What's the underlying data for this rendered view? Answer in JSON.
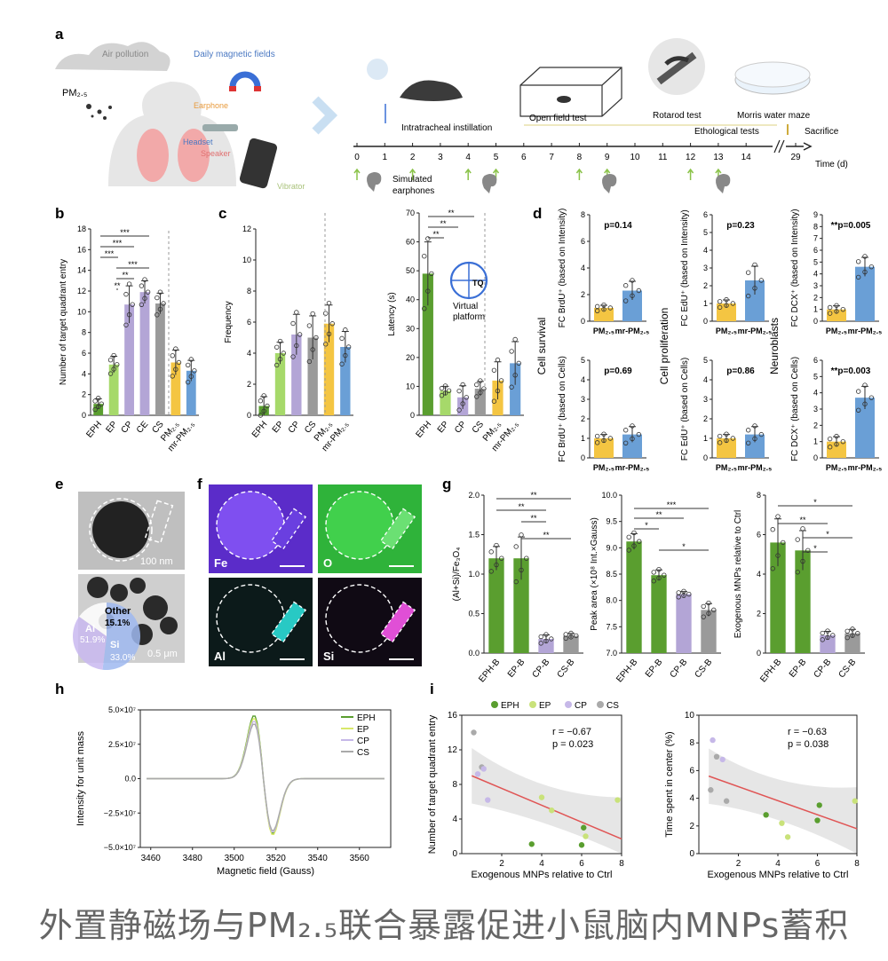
{
  "colors": {
    "EPH": "#5a9e2f",
    "EP": "#a6d96a",
    "CP": "#b3a5d6",
    "CS": "#9a9a9a",
    "PM": "#f4c542",
    "mrPM": "#6a9fd6",
    "line": "#e05555",
    "band": "#dcdcdc"
  },
  "caption": "外置静磁场与PM₂.₅联合暴露促进小鼠脑内MNPs蓄积",
  "panel_a": {
    "label": "a",
    "air_pollution": "Air pollution",
    "daily_fields": "Daily magnetic fields",
    "pm": "PM₂.₅",
    "earphone": "Earphone",
    "headset": "Headset",
    "speaker": "Speaker",
    "vibrator": "Vibrator",
    "instillation": "Intratracheal instillation",
    "open_field": "Open field test",
    "rotarod": "Rotarod test",
    "morris": "Morris water maze",
    "etho": "Ethological tests",
    "sacrifice": "Sacrifice",
    "simulated": "Simulated",
    "earphones": "earphones",
    "time_label": "Time (d)",
    "ticks": [
      "0",
      "1",
      "2",
      "3",
      "4",
      "5",
      "6",
      "7",
      "8",
      "9",
      "10",
      "11",
      "12",
      "13",
      "14",
      "29"
    ]
  },
  "panel_b": {
    "label": "b",
    "ylabel": "Number of target quadrant entry",
    "yticks": [
      "0",
      "2",
      "4",
      "6",
      "8",
      "10",
      "12",
      "14",
      "16",
      "18"
    ],
    "sig": [
      "***",
      "***",
      "***",
      "***",
      "**",
      "**"
    ]
  },
  "panel_c": {
    "label": "c",
    "ylabel_left": "Frequency",
    "ylabel_right": "Latency (s)",
    "yticks_left": [
      "0",
      "2",
      "4",
      "6",
      "8",
      "10",
      "12"
    ],
    "yticks_right": [
      "0",
      "10",
      "20",
      "30",
      "40",
      "50",
      "60",
      "70"
    ],
    "virtual1": "Virtual",
    "virtual2": "platform",
    "tq": "TQ",
    "sig": [
      "**",
      "**",
      "**"
    ]
  },
  "panel_d": {
    "label": "d",
    "row_titles": [
      "Cell survival",
      "Cell proliferation",
      "Neuroblasts"
    ],
    "top_ylabels": [
      "FC BrdU⁺ (based on Intensity)",
      "FC EdU⁺ (based on Intensity)",
      "FC DCX⁺ (based on Intensity)"
    ],
    "bot_ylabels": [
      "FC BrdU⁺ (based on Cells)",
      "FC EdU⁺ (based on Cells)",
      "FC DCX⁺ (based on Cells)"
    ],
    "pvals_top": [
      "p=0.14",
      "p=0.23",
      "**p=0.005"
    ],
    "pvals_bot": [
      "p=0.69",
      "p=0.86",
      "**p=0.003"
    ],
    "xcats": [
      "PM₂.₅",
      "mr-PM₂.₅"
    ]
  },
  "panel_e": {
    "label": "e",
    "scale1": "100 nm",
    "scale2": "0.5 μm",
    "other": "Other",
    "other_pct": "15.1%",
    "al": "Al",
    "al_pct": "51.9%",
    "si": "Si",
    "si_pct": "33.0%"
  },
  "panel_f": {
    "label": "f",
    "elements": [
      "Fe",
      "O",
      "Al",
      "Si"
    ]
  },
  "panel_g": {
    "label": "g",
    "ylabel1": "(Al+Si)/Fe₃O₄",
    "ylabel2": "Peak area (×10⁸ Int.×Gauss)",
    "ylabel3": "Exogenous MNPs relative to Ctrl",
    "yticks1": [
      "0.0",
      "0.5",
      "1.0",
      "1.5",
      "2.0"
    ],
    "yticks2": [
      "7.0",
      "7.5",
      "8.0",
      "8.5",
      "9.0",
      "9.5",
      "10.0"
    ],
    "yticks3": [
      "0",
      "2",
      "4",
      "6",
      "8"
    ],
    "xcats": [
      "EPH-B",
      "EP-B",
      "CP-B",
      "CS-B"
    ],
    "sig1": [
      "**",
      "**",
      "**",
      "**"
    ],
    "sig2": [
      "***",
      "**",
      "*",
      "*"
    ],
    "sig3": [
      "*",
      "**",
      "*",
      "*"
    ]
  },
  "panel_h": {
    "label": "h",
    "ylabel": "Intensity for unit mass",
    "xlabel": "Magnetic field (Gauss)",
    "yticks": [
      "5.0×10⁷",
      "2.5×10⁷",
      "0.0",
      "−2.5×10⁷",
      "−5.0×10⁷"
    ],
    "xticks": [
      "3460",
      "3480",
      "3500",
      "3520",
      "3540",
      "3560"
    ],
    "legend": [
      "EPH",
      "EP",
      "CP",
      "CS"
    ]
  },
  "panel_i": {
    "label": "i",
    "legend": [
      "EPH",
      "EP",
      "CP",
      "CS"
    ],
    "ylabel1": "Number of target quadrant entry",
    "ylabel2": "Time spent in center (%)",
    "xlabel": "Exogenous MNPs relative to Ctrl",
    "r1": "r = −0.67",
    "p1": "p = 0.023",
    "r2": "r = −0.63",
    "p2": "p = 0.038",
    "yticks1": [
      "0",
      "4",
      "8",
      "12",
      "16"
    ],
    "yticks2": [
      "0",
      "2",
      "4",
      "6",
      "8",
      "10"
    ],
    "xticks": [
      "2",
      "4",
      "6",
      "8"
    ]
  },
  "chart_data": [
    {
      "type": "bar",
      "panel": "b",
      "categories": [
        "EPH",
        "EP",
        "CP",
        "CE",
        "CS",
        "PM₂.₅",
        "mr-PM₂.₅"
      ],
      "values": [
        1.1,
        4.9,
        10.7,
        11.9,
        10.8,
        5.1,
        4.3
      ],
      "errors": [
        0.5,
        0.8,
        1.8,
        1.1,
        1.0,
        1.2,
        1.0
      ],
      "ylim": [
        0,
        18
      ]
    },
    {
      "type": "bar",
      "panel": "c-frequency",
      "categories": [
        "EPH",
        "EP",
        "CP",
        "CS",
        "PM₂.₅",
        "mr-PM₂.₅"
      ],
      "values": [
        0.6,
        4.0,
        5.2,
        5.0,
        5.9,
        4.4
      ],
      "errors": [
        0.6,
        0.7,
        1.3,
        1.4,
        1.2,
        1.0
      ],
      "ylim": [
        0,
        12
      ]
    },
    {
      "type": "bar",
      "panel": "c-latency",
      "categories": [
        "EPH",
        "EP",
        "CP",
        "CS",
        "PM₂.₅",
        "mr-PM₂.₅"
      ],
      "values": [
        49,
        8.5,
        6.2,
        9.2,
        12,
        18
      ],
      "errors": [
        11,
        1.5,
        4,
        2.5,
        6.5,
        7.5
      ],
      "ylim": [
        0,
        70
      ]
    },
    {
      "type": "bar",
      "panel": "d-survival-intensity",
      "categories": [
        "PM₂.₅",
        "mr-PM₂.₅"
      ],
      "values": [
        1.0,
        2.3
      ],
      "errors": [
        0.2,
        0.7
      ],
      "ylim": [
        0,
        8
      ]
    },
    {
      "type": "bar",
      "panel": "d-proliferation-intensity",
      "categories": [
        "PM₂.₅",
        "mr-PM₂.₅"
      ],
      "values": [
        1.0,
        2.3
      ],
      "errors": [
        0.2,
        0.8
      ],
      "ylim": [
        0,
        6
      ]
    },
    {
      "type": "bar",
      "panel": "d-neuroblast-intensity",
      "categories": [
        "PM₂.₅",
        "mr-PM₂.₅"
      ],
      "values": [
        1.0,
        4.6
      ],
      "errors": [
        0.3,
        0.8
      ],
      "ylim": [
        0,
        9
      ]
    },
    {
      "type": "bar",
      "panel": "d-survival-cells",
      "categories": [
        "PM₂.₅",
        "mr-PM₂.₅"
      ],
      "values": [
        1.0,
        1.2
      ],
      "errors": [
        0.2,
        0.4
      ],
      "ylim": [
        0,
        5
      ]
    },
    {
      "type": "bar",
      "panel": "d-proliferation-cells",
      "categories": [
        "PM₂.₅",
        "mr-PM₂.₅"
      ],
      "values": [
        1.0,
        1.2
      ],
      "errors": [
        0.2,
        0.4
      ],
      "ylim": [
        0,
        5
      ]
    },
    {
      "type": "bar",
      "panel": "d-neuroblast-cells",
      "categories": [
        "PM₂.₅",
        "mr-PM₂.₅"
      ],
      "values": [
        1.0,
        3.7
      ],
      "errors": [
        0.3,
        0.7
      ],
      "ylim": [
        0,
        6
      ]
    },
    {
      "type": "pie",
      "panel": "e",
      "labels": [
        "Al",
        "Si",
        "Other"
      ],
      "values": [
        51.9,
        33.0,
        15.1
      ]
    },
    {
      "type": "bar",
      "panel": "g-ratio",
      "categories": [
        "EPH-B",
        "EP-B",
        "CP-B",
        "CS-B"
      ],
      "values": [
        1.2,
        1.2,
        0.18,
        0.22
      ],
      "errors": [
        0.15,
        0.27,
        0.05,
        0.03
      ],
      "ylim": [
        0,
        2
      ]
    },
    {
      "type": "bar",
      "panel": "g-peak",
      "categories": [
        "EPH-B",
        "EP-B",
        "CP-B",
        "CS-B"
      ],
      "values": [
        9.12,
        8.48,
        8.12,
        7.82
      ],
      "errors": [
        0.15,
        0.1,
        0.05,
        0.12
      ],
      "ylim": [
        7,
        10
      ]
    },
    {
      "type": "bar",
      "panel": "g-exogenous",
      "categories": [
        "EPH-B",
        "EP-B",
        "CP-B",
        "CS-B"
      ],
      "values": [
        5.6,
        5.2,
        0.9,
        1.0
      ],
      "errors": [
        1.2,
        1.0,
        0.2,
        0.2
      ],
      "ylim": [
        0,
        8
      ]
    },
    {
      "type": "line",
      "panel": "h",
      "xlim": [
        3455,
        3575
      ],
      "ylim": [
        -50000000.0,
        50000000.0
      ],
      "series": [
        {
          "name": "EPH",
          "peak_max": 46000000.0,
          "peak_min": -40000000.0
        },
        {
          "name": "EP",
          "peak_max": 44000000.0,
          "peak_min": -41000000.0
        },
        {
          "name": "CP",
          "peak_max": 42000000.0,
          "peak_min": -39000000.0
        },
        {
          "name": "CS",
          "peak_max": 40000000.0,
          "peak_min": -38000000.0
        }
      ]
    },
    {
      "type": "scatter",
      "panel": "i-left",
      "xlim": [
        0,
        8
      ],
      "ylim": [
        0,
        16
      ],
      "points": [
        [
          0.6,
          14,
          "CS"
        ],
        [
          1.0,
          10,
          "CS"
        ],
        [
          1.1,
          9.8,
          "CP"
        ],
        [
          1.3,
          6.2,
          "CP"
        ],
        [
          0.8,
          9.2,
          "CP"
        ],
        [
          3.5,
          1.1,
          "EPH"
        ],
        [
          4.5,
          5.0,
          "EP"
        ],
        [
          6.0,
          1.0,
          "EPH"
        ],
        [
          6.1,
          3.0,
          "EPH"
        ],
        [
          6.2,
          2.0,
          "EP"
        ],
        [
          7.8,
          6.2,
          "EP"
        ],
        [
          4.0,
          6.5,
          "EP"
        ]
      ],
      "fit": [
        [
          0.5,
          9.0
        ],
        [
          8.0,
          1.7
        ]
      ]
    },
    {
      "type": "scatter",
      "panel": "i-right",
      "xlim": [
        0,
        8
      ],
      "ylim": [
        0,
        10
      ],
      "points": [
        [
          0.7,
          8.2,
          "CP"
        ],
        [
          0.9,
          7.0,
          "CS"
        ],
        [
          1.2,
          6.8,
          "CP"
        ],
        [
          1.4,
          3.8,
          "CS"
        ],
        [
          0.6,
          4.6,
          "CS"
        ],
        [
          3.4,
          2.8,
          "EPH"
        ],
        [
          4.5,
          1.2,
          "EP"
        ],
        [
          6.0,
          2.4,
          "EPH"
        ],
        [
          6.1,
          3.5,
          "EPH"
        ],
        [
          7.9,
          3.8,
          "EP"
        ],
        [
          4.2,
          2.2,
          "EP"
        ]
      ],
      "fit": [
        [
          0.5,
          5.6
        ],
        [
          8.0,
          1.8
        ]
      ]
    }
  ]
}
